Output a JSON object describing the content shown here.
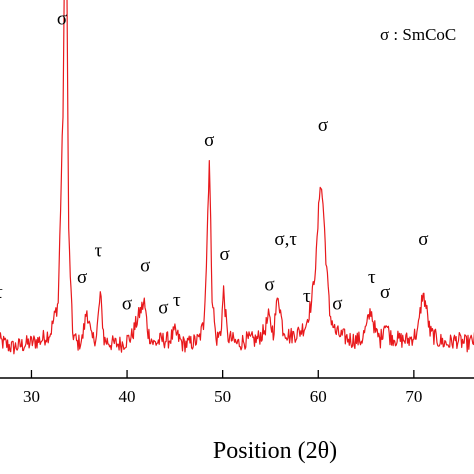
{
  "chart_data": {
    "type": "line",
    "xlabel": "Position (2θ)",
    "ylabel": "",
    "xlim": [
      26.5,
      76.5
    ],
    "ylim": [
      0,
      100
    ],
    "x_ticks": [
      30,
      40,
      50,
      60,
      70
    ],
    "x_tick_labels": [
      "30",
      "40",
      "50",
      "60",
      "70"
    ],
    "legend": "σ : SmCoC",
    "series": [
      {
        "color": "#e8191c",
        "x": [
          26.5,
          28.0,
          29.5,
          31.0,
          32.0,
          32.8,
          33.3,
          33.6,
          33.9,
          34.3,
          34.8,
          35.3,
          35.8,
          36.3,
          36.8,
          37.2,
          37.6,
          38.5,
          39.5,
          40.5,
          41.3,
          41.8,
          42.2,
          42.8,
          43.6,
          44.4,
          45.0,
          45.8,
          46.5,
          47.5,
          48.0,
          48.3,
          48.6,
          48.9,
          49.3,
          49.8,
          50.1,
          50.5,
          51.5,
          52.5,
          53.5,
          54.3,
          54.8,
          55.3,
          55.8,
          56.3,
          57.0,
          58.0,
          58.7,
          59.3,
          59.8,
          60.2,
          60.5,
          60.8,
          61.2,
          61.8,
          62.5,
          63.5,
          64.5,
          65.0,
          65.5,
          66.0,
          66.5,
          67.0,
          67.5,
          68.5,
          69.5,
          70.4,
          70.9,
          71.2,
          71.7,
          72.5,
          73.5,
          74.5,
          75.5,
          76.5
        ],
        "y": [
          10,
          8,
          9,
          10,
          12,
          20,
          70,
          140,
          38,
          12,
          9,
          10,
          18,
          10,
          11,
          22,
          10,
          9,
          9,
          11,
          17,
          20,
          12,
          9,
          10,
          10,
          12,
          9,
          9,
          10,
          14,
          30,
          58,
          22,
          10,
          12,
          23,
          11,
          9,
          10,
          10,
          12,
          16,
          12,
          22,
          13,
          11,
          12,
          14,
          20,
          32,
          52,
          46,
          32,
          17,
          12,
          11,
          10,
          10,
          13,
          18,
          12,
          10,
          15,
          11,
          10,
          10,
          12,
          22,
          20,
          12,
          10,
          9,
          10,
          9,
          10
        ]
      }
    ],
    "annotations": [
      {
        "text": "σ",
        "x": 33.2,
        "y": 93
      },
      {
        "text": "τ",
        "x": 26.6,
        "y": 21
      },
      {
        "text": "σ",
        "x": 35.3,
        "y": 25
      },
      {
        "text": "τ",
        "x": 37.0,
        "y": 32
      },
      {
        "text": "σ",
        "x": 40.0,
        "y": 18
      },
      {
        "text": "σ",
        "x": 41.9,
        "y": 28
      },
      {
        "text": "σ",
        "x": 43.8,
        "y": 17
      },
      {
        "text": "τ",
        "x": 45.2,
        "y": 19
      },
      {
        "text": "σ",
        "x": 48.6,
        "y": 61
      },
      {
        "text": "σ",
        "x": 50.2,
        "y": 31
      },
      {
        "text": "σ",
        "x": 54.9,
        "y": 23
      },
      {
        "text": "σ,τ",
        "x": 56.6,
        "y": 35
      },
      {
        "text": "τ",
        "x": 58.8,
        "y": 20
      },
      {
        "text": "σ",
        "x": 60.5,
        "y": 65
      },
      {
        "text": "σ",
        "x": 62.0,
        "y": 18
      },
      {
        "text": "τ",
        "x": 65.6,
        "y": 25
      },
      {
        "text": "σ",
        "x": 67.0,
        "y": 21
      },
      {
        "text": "σ",
        "x": 71.0,
        "y": 35
      }
    ]
  }
}
